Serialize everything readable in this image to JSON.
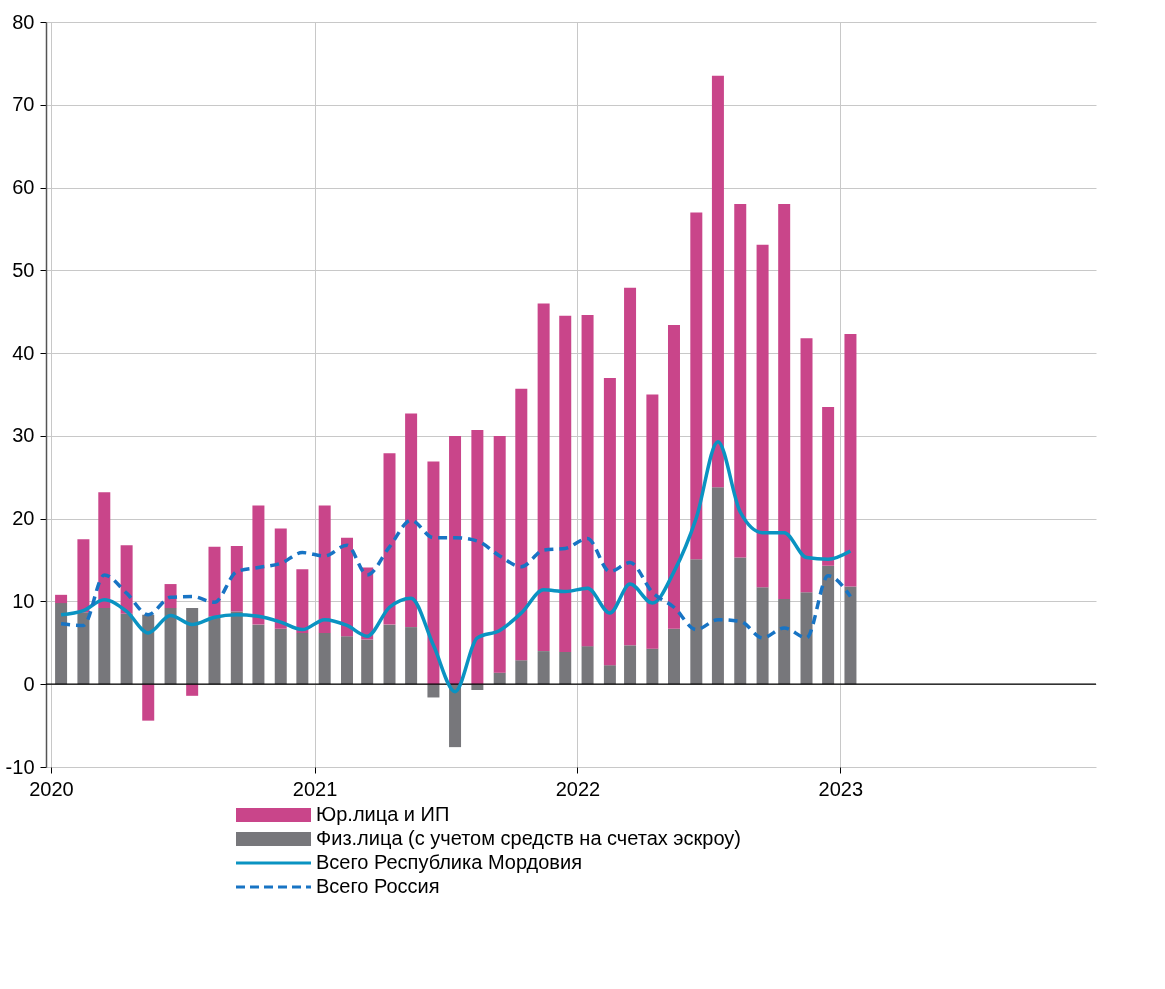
{
  "chart_data": {
    "type": "bar",
    "stacked": true,
    "x": [
      "2020-01-15",
      "2020-02-15",
      "2020-03-15",
      "2020-04-15",
      "2020-05-15",
      "2020-06-15",
      "2020-07-15",
      "2020-08-15",
      "2020-09-15",
      "2020-10-15",
      "2020-11-15",
      "2020-12-15",
      "2021-01-15",
      "2021-02-15",
      "2021-03-15",
      "2021-04-15",
      "2021-05-15",
      "2021-06-15",
      "2021-07-15",
      "2021-08-15",
      "2021-09-15",
      "2021-10-15",
      "2021-11-15",
      "2021-12-15",
      "2022-01-15",
      "2022-02-15",
      "2022-03-15",
      "2022-04-15",
      "2022-05-15",
      "2022-06-15",
      "2022-07-15",
      "2022-08-15",
      "2022-09-15",
      "2022-10-15",
      "2022-11-15",
      "2022-12-15",
      "2023-01-15"
    ],
    "series": [
      {
        "name": "Физ.лица (с учетом средств на счетах эскроу)",
        "color": "#77777b",
        "values": [
          9.8,
          8.7,
          9.2,
          8.5,
          8.4,
          9.2,
          9.2,
          8.2,
          8.8,
          7.2,
          6.7,
          6.2,
          6.2,
          5.8,
          5.4,
          7.2,
          6.9,
          -1.6,
          -7.6,
          -0.7,
          1.4,
          2.9,
          4.0,
          3.9,
          4.6,
          2.3,
          4.7,
          4.3,
          6.7,
          15.1,
          23.8,
          15.3,
          11.7,
          10.3,
          11.1,
          14.3,
          11.8
        ]
      },
      {
        "name": "Юр.лица и ИП",
        "color": "#c9458a",
        "values": [
          1.0,
          8.8,
          14.0,
          8.3,
          -4.4,
          2.9,
          -1.4,
          8.4,
          7.9,
          14.4,
          12.1,
          7.7,
          15.4,
          11.9,
          8.7,
          20.7,
          25.8,
          26.9,
          30.0,
          30.7,
          28.6,
          32.8,
          42.0,
          40.6,
          40.0,
          34.7,
          43.2,
          30.7,
          36.7,
          41.9,
          49.7,
          42.7,
          41.4,
          47.7,
          30.7,
          19.2,
          30.5
        ]
      },
      {
        "name": "Всего Республика Мордовия",
        "color": "#0a93c2",
        "type": "line",
        "line_style": "solid",
        "values": [
          8.4,
          8.9,
          10.2,
          8.8,
          6.2,
          8.3,
          7.2,
          8.1,
          8.4,
          8.2,
          7.5,
          6.6,
          7.8,
          7.1,
          5.8,
          9.3,
          10.4,
          4.7,
          -0.9,
          5.6,
          6.5,
          8.6,
          11.4,
          11.2,
          11.6,
          8.6,
          12.1,
          9.8,
          13.6,
          20.1,
          29.3,
          20.8,
          18.3,
          18.3,
          15.3,
          15.1,
          16.1
        ]
      },
      {
        "name": "Всего Россия",
        "color": "#1874c4",
        "type": "line",
        "line_style": "dashed",
        "values": [
          7.3,
          7.1,
          13.2,
          11.0,
          8.4,
          10.5,
          10.6,
          9.9,
          13.6,
          14.1,
          14.6,
          15.9,
          15.5,
          16.8,
          13.2,
          16.6,
          19.8,
          17.7,
          17.7,
          17.3,
          15.5,
          14.2,
          16.2,
          16.4,
          17.6,
          13.6,
          14.7,
          11.1,
          9.3,
          6.6,
          7.8,
          7.6,
          5.6,
          6.8,
          5.6,
          13.1,
          10.6
        ]
      }
    ],
    "xlim": [
      "2020-01-01",
      "2023-12-15"
    ],
    "xticks": [
      "2020",
      "2021",
      "2022",
      "2023"
    ],
    "ylim": [
      -10,
      80
    ],
    "yticks": [
      -10,
      0,
      10,
      20,
      30,
      40,
      50,
      60,
      70,
      80
    ],
    "grid": true,
    "legend": "bottom"
  }
}
